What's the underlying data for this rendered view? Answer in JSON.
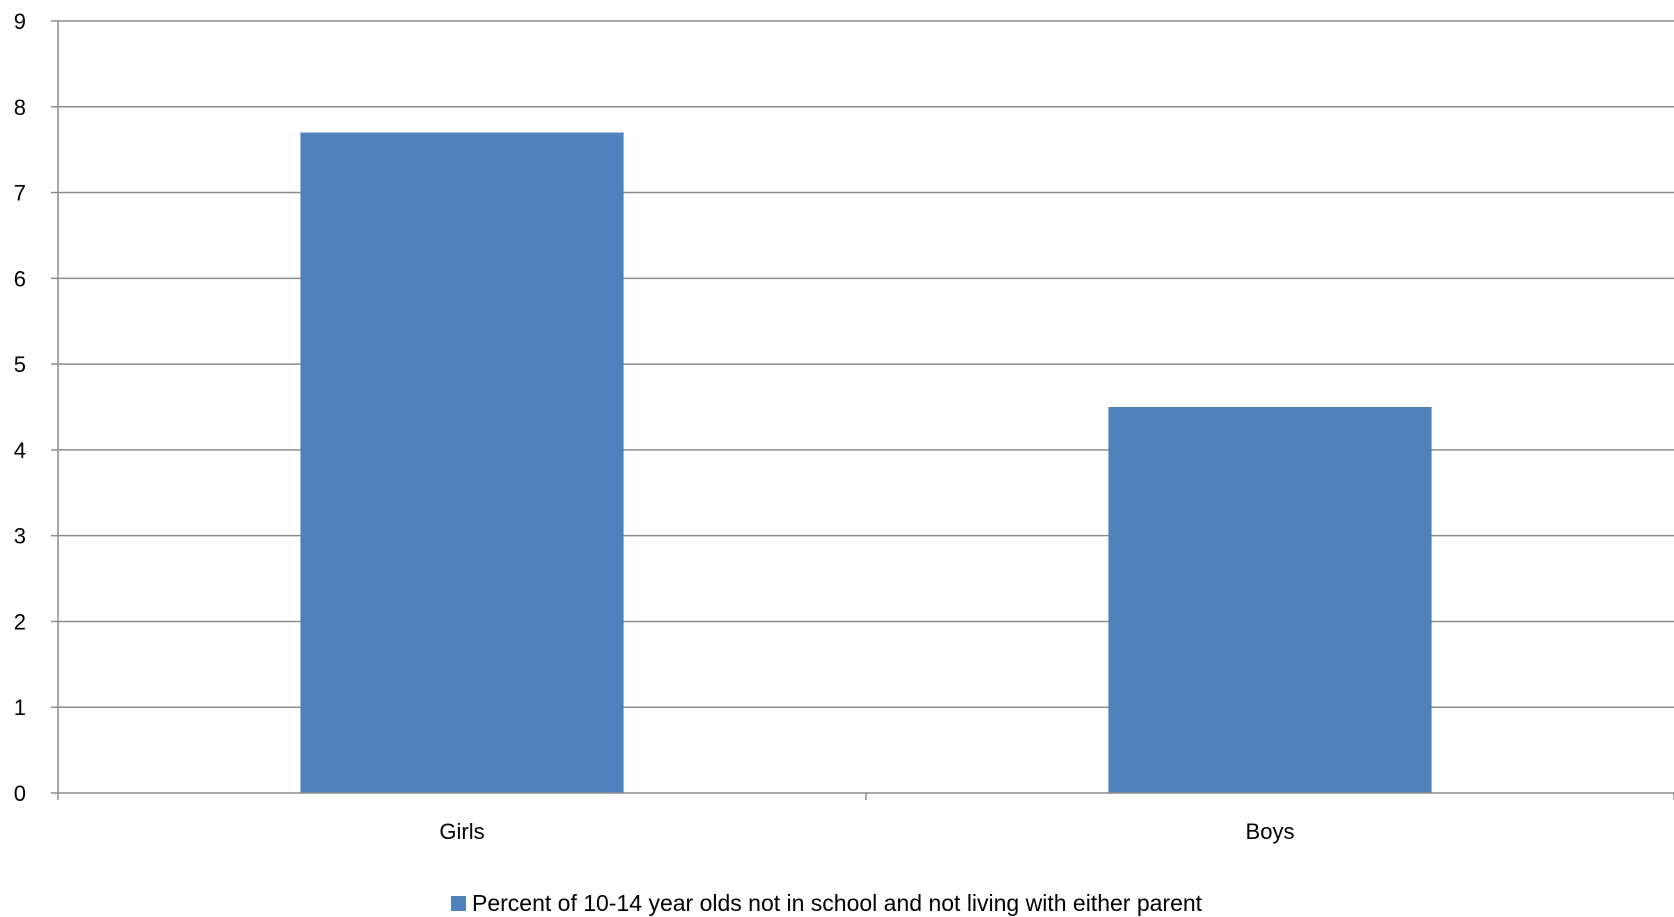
{
  "chart_data": {
    "type": "bar",
    "categories": [
      "Girls",
      "Boys"
    ],
    "series": [
      {
        "name": "Percent of 10-14 year olds not in school and not living with either parent",
        "values": [
          7.7,
          4.5
        ],
        "color": "#4F81BD"
      }
    ],
    "title": "",
    "xlabel": "",
    "ylabel": "",
    "ylim": [
      0,
      9
    ],
    "yticks": [
      "0",
      "1",
      "2",
      "3",
      "4",
      "5",
      "6",
      "7",
      "8",
      "9"
    ],
    "grid": true,
    "legend": "bottom"
  },
  "colors": {
    "gridline": "#8C8C8C",
    "axis": "#8C8C8C",
    "bar": "#4F81BD"
  }
}
